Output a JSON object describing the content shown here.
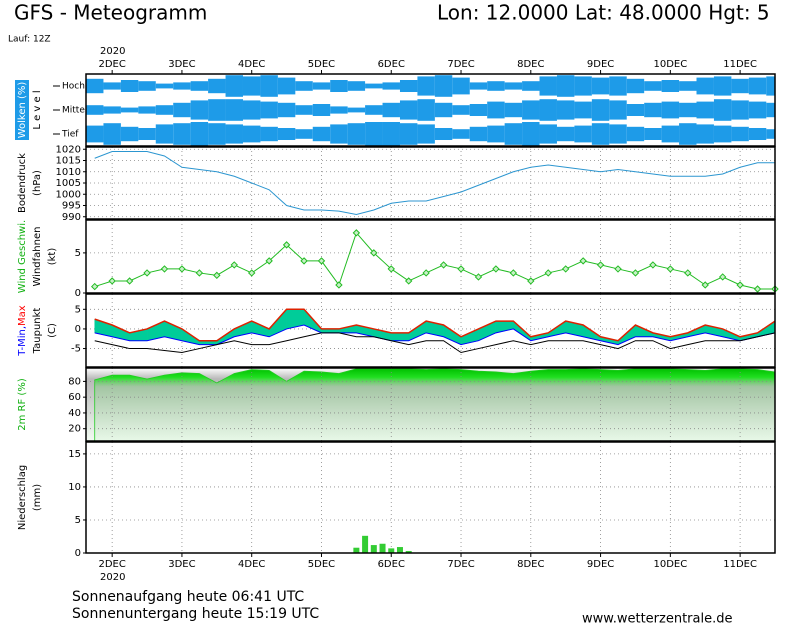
{
  "header": {
    "title": "GFS - Meteogramm",
    "location": "Lon: 12.0000  Lat: 48.0000  Hgt: 5",
    "run": "Lauf: 12Z"
  },
  "time_axis": {
    "year": "2020",
    "xlim": [
      -9,
      228
    ],
    "xticks": [
      {
        "value": 0,
        "label": "2DEC"
      },
      {
        "value": 24,
        "label": "3DEC"
      },
      {
        "value": 48,
        "label": "4DEC"
      },
      {
        "value": 72,
        "label": "5DEC"
      },
      {
        "value": 96,
        "label": "6DEC"
      },
      {
        "value": 120,
        "label": "7DEC"
      },
      {
        "value": 144,
        "label": "8DEC"
      },
      {
        "value": 168,
        "label": "9DEC"
      },
      {
        "value": 192,
        "label": "10DEC"
      },
      {
        "value": 216,
        "label": "11DEC"
      }
    ]
  },
  "footer": {
    "sunrise": "Sonnenaufgang heute 06:41 UTC",
    "sunset": "Sonnenuntergang heute 15:19 UTC",
    "site": "www.wetterzentrale.de"
  },
  "chart_data": [
    {
      "type": "cloud",
      "ylabel": [
        [
          {
            "text": "Wolken (%)",
            "color": "#ffffff",
            "bg": "#1e9be8"
          }
        ],
        [
          {
            "text": "L e v e l"
          }
        ]
      ],
      "x": [
        -6,
        0,
        6,
        12,
        18,
        24,
        30,
        36,
        42,
        48,
        54,
        60,
        66,
        72,
        78,
        84,
        90,
        96,
        102,
        108,
        114,
        120,
        126,
        132,
        138,
        144,
        150,
        156,
        162,
        168,
        174,
        180,
        186,
        192,
        198,
        204,
        210,
        216,
        222,
        228
      ],
      "series": [
        {
          "name": "Hoch",
          "color": "#1e9be8",
          "values": [
            60,
            30,
            50,
            40,
            20,
            30,
            40,
            60,
            90,
            80,
            90,
            70,
            40,
            30,
            50,
            40,
            20,
            30,
            50,
            80,
            90,
            70,
            30,
            40,
            30,
            40,
            80,
            90,
            80,
            70,
            80,
            60,
            40,
            50,
            40,
            70,
            80,
            60,
            70,
            80
          ]
        },
        {
          "name": "Mittel",
          "color": "#1e9be8",
          "values": [
            40,
            30,
            20,
            30,
            40,
            60,
            80,
            90,
            90,
            80,
            70,
            60,
            40,
            50,
            30,
            20,
            40,
            60,
            80,
            90,
            60,
            40,
            50,
            70,
            60,
            80,
            90,
            80,
            70,
            90,
            80,
            50,
            60,
            70,
            60,
            70,
            90,
            80,
            70,
            60
          ]
        },
        {
          "name": "Tief",
          "color": "#1e9be8",
          "values": [
            70,
            90,
            60,
            50,
            80,
            90,
            100,
            90,
            80,
            70,
            60,
            50,
            40,
            60,
            80,
            90,
            100,
            100,
            90,
            80,
            50,
            40,
            60,
            70,
            90,
            100,
            80,
            60,
            70,
            90,
            80,
            60,
            50,
            70,
            90,
            80,
            70,
            60,
            50,
            40
          ]
        }
      ]
    },
    {
      "type": "line",
      "ylabel": [
        [
          {
            "text": "Bodendruck"
          }
        ],
        [
          {
            "text": "(hPa)"
          }
        ]
      ],
      "ylim": [
        989,
        1021
      ],
      "yticks": [
        990,
        995,
        1000,
        1005,
        1010,
        1015,
        1020
      ],
      "grid": true,
      "x": [
        -6,
        0,
        6,
        12,
        18,
        24,
        30,
        36,
        42,
        48,
        54,
        60,
        66,
        72,
        78,
        84,
        90,
        96,
        102,
        108,
        114,
        120,
        126,
        132,
        138,
        144,
        150,
        156,
        162,
        168,
        174,
        180,
        186,
        192,
        198,
        204,
        210,
        216,
        222,
        228
      ],
      "series": [
        {
          "color": "#2c96d0",
          "values": [
            1016,
            1019,
            1019,
            1019,
            1017,
            1012,
            1011,
            1010,
            1008,
            1005,
            1002,
            995,
            993,
            993,
            992.5,
            991,
            993,
            996,
            997,
            997,
            999,
            1001,
            1004,
            1007,
            1010,
            1012,
            1013,
            1012,
            1011,
            1010,
            1011,
            1010,
            1009,
            1008,
            1008,
            1008,
            1009,
            1012,
            1014,
            1014
          ]
        }
      ]
    },
    {
      "type": "line",
      "markers": true,
      "ylabel": [
        [
          {
            "text": "Wind Geschwi.",
            "color": "#10b010"
          }
        ],
        [
          {
            "text": "Windfahnen"
          }
        ],
        [
          {
            "text": "(kt)"
          }
        ]
      ],
      "ylim": [
        0,
        9.1
      ],
      "yticks": [
        0,
        5
      ],
      "grid": true,
      "x": [
        -6,
        0,
        6,
        12,
        18,
        24,
        30,
        36,
        42,
        48,
        54,
        60,
        66,
        72,
        78,
        84,
        90,
        96,
        102,
        108,
        114,
        120,
        126,
        132,
        138,
        144,
        150,
        156,
        162,
        168,
        174,
        180,
        186,
        192,
        198,
        204,
        210,
        216,
        222,
        228
      ],
      "series": [
        {
          "color": "#22bb22",
          "values": [
            0.8,
            1.5,
            1.5,
            2.5,
            3,
            3,
            2.5,
            2.2,
            3.5,
            2.5,
            4,
            6,
            4,
            4,
            1,
            7.5,
            5,
            3,
            1.5,
            2.5,
            3.5,
            3,
            2,
            3,
            2.5,
            1.5,
            2.5,
            3,
            4,
            3.5,
            3,
            2.5,
            3.5,
            3,
            2.5,
            1,
            2,
            1,
            0.5,
            0.5
          ]
        }
      ]
    },
    {
      "type": "band",
      "band_color": "#00cc99",
      "ylabel": [
        [
          {
            "text": "T-Min,",
            "color": "#0000ff"
          },
          {
            "text": "Max",
            "color": "#ff0000"
          }
        ],
        [
          {
            "text": "Taupunkt"
          }
        ],
        [
          {
            "text": "(C)"
          }
        ]
      ],
      "ylim": [
        -9.7,
        8.9
      ],
      "yticks": [
        -5,
        0,
        5
      ],
      "grid": true,
      "x": [
        -6,
        0,
        6,
        12,
        18,
        24,
        30,
        36,
        42,
        48,
        54,
        60,
        66,
        72,
        78,
        84,
        90,
        96,
        102,
        108,
        114,
        120,
        126,
        132,
        138,
        144,
        150,
        156,
        162,
        168,
        174,
        180,
        186,
        192,
        198,
        204,
        210,
        216,
        222,
        228
      ],
      "series": [
        {
          "color": "#0000ff",
          "values": [
            -1,
            -2,
            -3,
            -3,
            -2,
            -3,
            -4,
            -4,
            -2,
            -1,
            -2,
            0,
            1,
            -1,
            -1,
            -1,
            -2,
            -3,
            -3,
            -1,
            -2,
            -4,
            -3,
            -1,
            0,
            -3,
            -2,
            -1,
            -2,
            -3,
            -4,
            -2,
            -2,
            -3,
            -2,
            -1,
            -2,
            -3,
            -2,
            -1
          ]
        },
        {
          "color": "#dd2200",
          "values": [
            2.5,
            1,
            -1,
            0,
            2,
            0,
            -3,
            -3,
            0,
            2,
            0,
            5,
            5,
            0,
            0,
            1,
            0,
            -1,
            -1,
            2,
            1,
            -2,
            0,
            2,
            2,
            -2,
            -1,
            2,
            1,
            -2,
            -3,
            1,
            -1,
            -2,
            -1,
            1,
            0,
            -2,
            -1,
            2
          ]
        },
        {
          "color": "#000000",
          "values": [
            -3,
            -4,
            -5,
            -5,
            -5.5,
            -6,
            -5,
            -4,
            -3,
            -4,
            -4,
            -3,
            -2,
            -1,
            -1,
            -2,
            -2,
            -3,
            -4,
            -3,
            -3,
            -6,
            -5,
            -4,
            -3,
            -4,
            -3,
            -3,
            -3,
            -4,
            -5,
            -3,
            -3,
            -5,
            -4,
            -3,
            -3,
            -3,
            -2,
            -1
          ]
        }
      ]
    },
    {
      "type": "area",
      "ylabel": [
        [
          {
            "text": "2m RF (%)",
            "color": "#10b010"
          }
        ]
      ],
      "ylim": [
        4.4,
        97
      ],
      "yticks": [
        20,
        40,
        60,
        80
      ],
      "grid": true,
      "x": [
        -6,
        0,
        6,
        12,
        18,
        24,
        30,
        36,
        42,
        48,
        54,
        60,
        66,
        72,
        78,
        84,
        90,
        96,
        102,
        108,
        114,
        120,
        126,
        132,
        138,
        144,
        150,
        156,
        162,
        168,
        174,
        180,
        186,
        192,
        198,
        204,
        210,
        216,
        222,
        228
      ],
      "series": [
        {
          "color": "#22cc22",
          "values": [
            82,
            88,
            88,
            83,
            88,
            91,
            90,
            78,
            90,
            95,
            94,
            80,
            93,
            92,
            90,
            96,
            96,
            96,
            96,
            95,
            96,
            95,
            93,
            92,
            90,
            93,
            95,
            95,
            96,
            95,
            94,
            96,
            96,
            96,
            95,
            94,
            96,
            96,
            95,
            92
          ]
        }
      ]
    },
    {
      "type": "bar",
      "ylabel": [
        [
          {
            "text": "Niederschlag"
          }
        ],
        [
          {
            "text": "(mm)"
          }
        ]
      ],
      "ylim": [
        0,
        16.8
      ],
      "yticks": [
        0,
        5,
        10,
        15
      ],
      "grid": true,
      "x": [
        84,
        87,
        90,
        93,
        96,
        99,
        102
      ],
      "series": [
        {
          "color": "#33cc33",
          "values": [
            0.8,
            2.6,
            1.2,
            1.4,
            0.7,
            0.9,
            0.3
          ]
        }
      ]
    }
  ]
}
